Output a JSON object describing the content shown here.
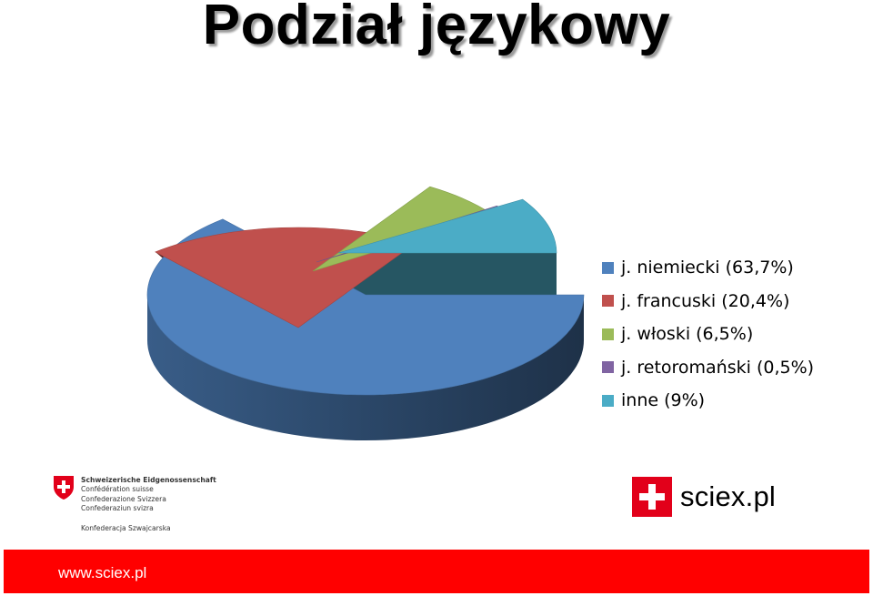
{
  "page": {
    "title": "Podział językowy"
  },
  "chart_data": {
    "type": "pie",
    "title": "",
    "categories": [
      "j. niemiecki",
      "j. francuski",
      "j. włoski",
      "j. retoromański",
      "inne"
    ],
    "values": [
      63.7,
      20.4,
      6.5,
      0.5,
      9
    ],
    "unit": "%",
    "legend": {
      "placement": "right",
      "entries": [
        "j. niemiecki (63,7%)",
        "j. francuski (20,4%)",
        "j. włoski (6,5%)",
        "j. retoromański (0,5%)",
        "inne (9%)"
      ]
    },
    "colors": [
      "#4f81bd",
      "#c0504d",
      "#9bbb59",
      "#8064a2",
      "#4bacc6"
    ],
    "style": "3d-exploded"
  },
  "logos": {
    "swiss": {
      "icon": "swiss-cross-icon",
      "lines": [
        "Schweizerische Eidgenossenschaft",
        "Confédération suisse",
        "Confederazione Svizzera",
        "Confederaziun svizra"
      ],
      "polish": "Konfederacja Szwajcarska"
    },
    "sciex": {
      "icon": "swiss-cross-icon",
      "text": "sciex.pl"
    }
  },
  "footer": {
    "url": "www.sciex.pl",
    "color": "#ff0000"
  }
}
